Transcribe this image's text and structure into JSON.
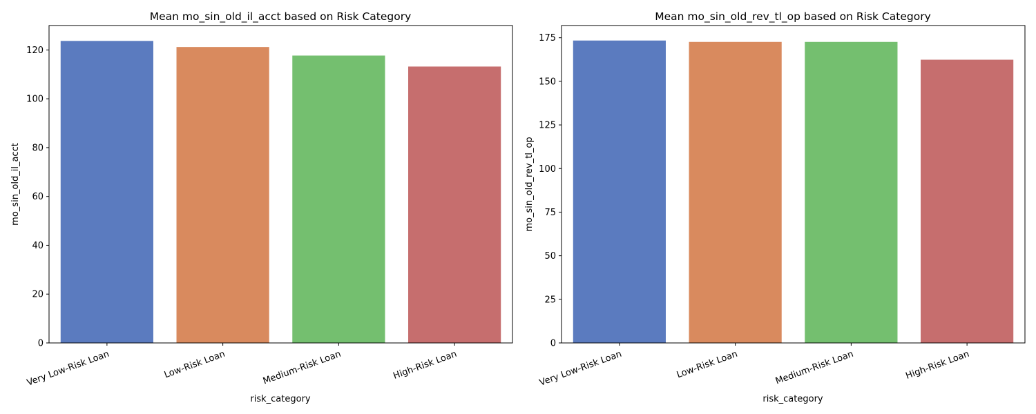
{
  "colors": [
    "#5b7bbf",
    "#d98a5e",
    "#74bf6f",
    "#c66e6e"
  ],
  "chart_data": [
    {
      "type": "bar",
      "title": "Mean mo_sin_old_il_acct based on Risk Category",
      "xlabel": "risk_category",
      "ylabel": "mo_sin_old_il_acct",
      "categories": [
        "Very Low-Risk Loan",
        "Low-Risk Loan",
        "Medium-Risk Loan",
        "High-Risk Loan"
      ],
      "values": [
        123.7,
        121.2,
        117.7,
        113.2
      ],
      "ylim": [
        0,
        130
      ],
      "yticks": [
        0,
        20,
        40,
        60,
        80,
        100,
        120
      ],
      "ytick_labels": [
        "0",
        "20",
        "40",
        "60",
        "80",
        "100",
        "120"
      ],
      "grid": false,
      "legend": "none"
    },
    {
      "type": "bar",
      "title": "Mean mo_sin_old_rev_tl_op based on Risk Category",
      "xlabel": "risk_category",
      "ylabel": "mo_sin_old_rev_tl_op",
      "categories": [
        "Very Low-Risk Loan",
        "Low-Risk Loan",
        "Medium-Risk Loan",
        "High-Risk Loan"
      ],
      "values": [
        173.4,
        172.6,
        172.6,
        162.4
      ],
      "ylim": [
        0,
        182
      ],
      "yticks": [
        0,
        25,
        50,
        75,
        100,
        125,
        150,
        175
      ],
      "ytick_labels": [
        "0",
        "25",
        "50",
        "75",
        "100",
        "125",
        "150",
        "175"
      ],
      "grid": false,
      "legend": "none"
    }
  ]
}
